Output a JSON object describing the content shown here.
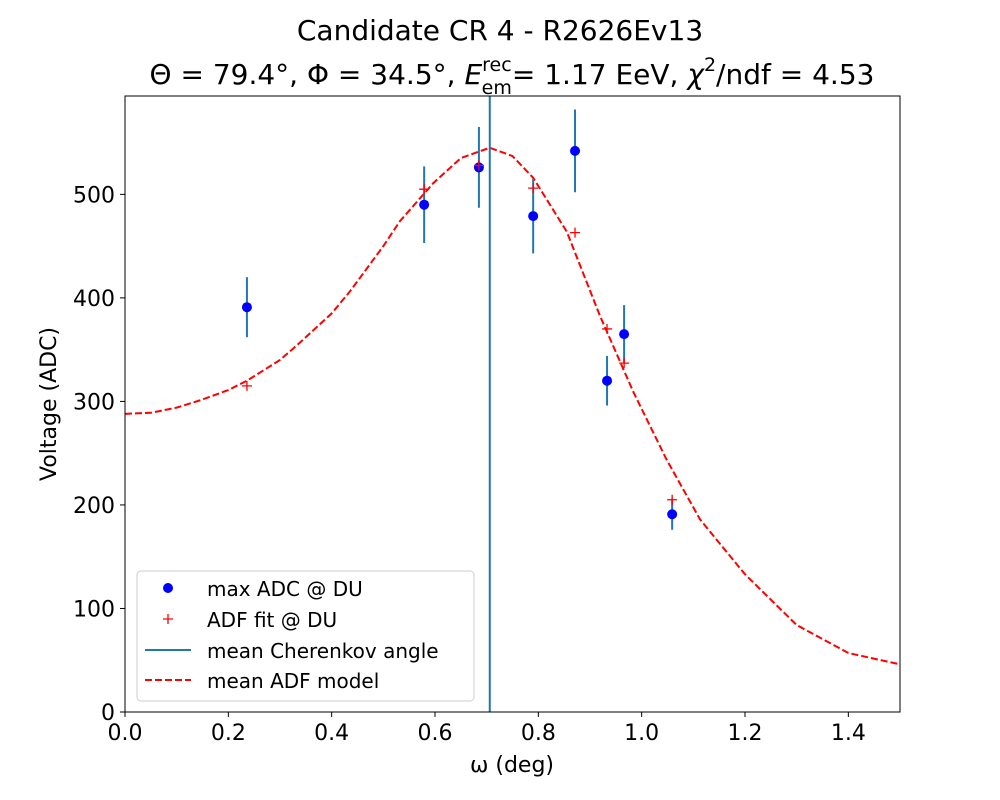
{
  "chart_data": {
    "type": "scatter",
    "title": "Candidate CR 4 - R2626Ev13",
    "subtitle": {
      "theta": "Θ = 79.4°,",
      "phi": "Φ = 34.5°,",
      "energy_symbol": "E",
      "energy_sup": "rec",
      "energy_sub": "em",
      "energy_value": "= 1.17 EeV,",
      "chi_symbol": "χ",
      "chi_sup": "2",
      "chi_value": "/ndf = 4.53"
    },
    "xlabel": "ω (deg)",
    "ylabel": "Voltage (ADC)",
    "xlim": [
      0,
      1.5
    ],
    "ylim": [
      0,
      595
    ],
    "xticks": [
      "0.0",
      "0.2",
      "0.4",
      "0.6",
      "0.8",
      "1.0",
      "1.2",
      "1.4"
    ],
    "yticks": [
      "0",
      "100",
      "200",
      "300",
      "400",
      "500"
    ],
    "grid": false,
    "legend_position": "lower-left",
    "legend": [
      "max ADC @ DU",
      "ADF fit @ DU",
      "mean Cherenkov angle",
      "mean ADF model"
    ],
    "colors": {
      "data": "#0000ff",
      "fit": "#ff0000",
      "cherenkov": "#1f77b4",
      "model": "#ff0000"
    },
    "series": [
      {
        "name": "max ADC @ DU",
        "x": [
          0.236,
          0.579,
          0.685,
          0.79,
          0.871,
          0.933,
          0.966,
          1.059
        ],
        "y": [
          391,
          490,
          526,
          479,
          542,
          320,
          365,
          191
        ],
        "yerr": [
          29,
          37,
          39,
          36,
          40,
          24,
          28,
          15
        ]
      },
      {
        "name": "ADF fit @ DU",
        "x": [
          0.236,
          0.579,
          0.685,
          0.79,
          0.871,
          0.933,
          0.966,
          1.059
        ],
        "y": [
          315,
          505,
          528,
          506,
          463,
          370,
          337,
          205
        ]
      },
      {
        "name": "mean Cherenkov angle",
        "x": 0.706
      },
      {
        "name": "mean ADF model",
        "x": [
          0,
          0.05,
          0.1,
          0.145,
          0.2,
          0.236,
          0.3,
          0.339,
          0.4,
          0.435,
          0.5,
          0.532,
          0.597,
          0.65,
          0.706,
          0.75,
          0.79,
          0.855,
          0.919,
          0.984,
          1.048,
          1.113,
          1.2,
          1.3,
          1.4,
          1.5
        ],
        "y": [
          288,
          289,
          294,
          301,
          311,
          320,
          340,
          357,
          385,
          406,
          450,
          474,
          511,
          535,
          545,
          537,
          516,
          464,
          383,
          309,
          244,
          186,
          133,
          84,
          57,
          46
        ]
      }
    ]
  }
}
